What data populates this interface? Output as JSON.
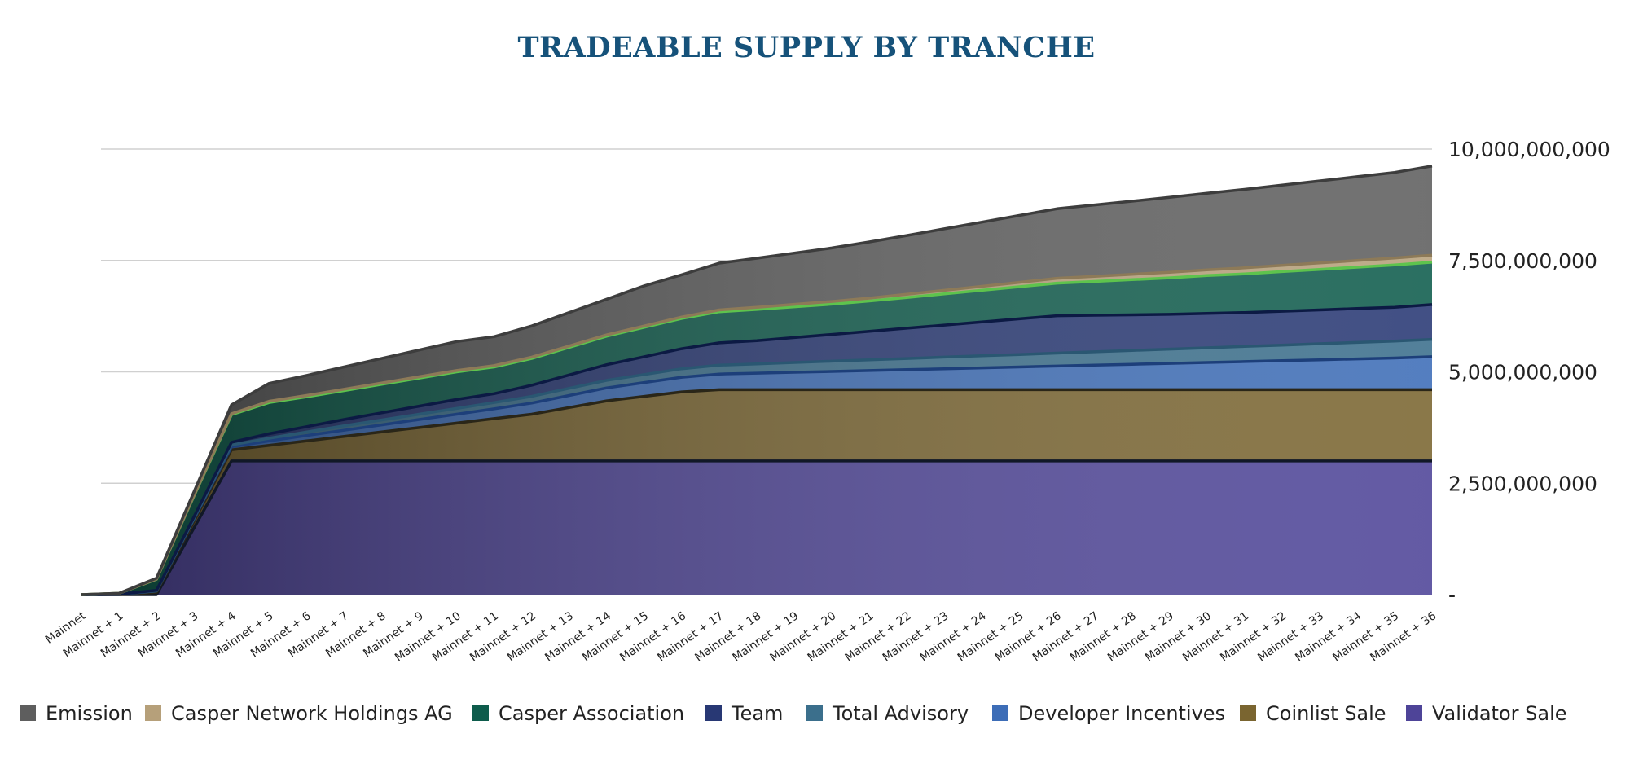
{
  "chart_data": {
    "type": "area",
    "stacked": true,
    "title": "TRADEABLE SUPPLY BY TRANCHE",
    "xlabel": "",
    "ylabel": "",
    "ylim": [
      0,
      10000000000
    ],
    "y_axis_position": "right",
    "yticks": [
      {
        "value": 0,
        "label": "-"
      },
      {
        "value": 2500000000,
        "label": "2,500,000,000"
      },
      {
        "value": 5000000000,
        "label": "5,000,000,000"
      },
      {
        "value": 7500000000,
        "label": "7,500,000,000"
      },
      {
        "value": 10000000000,
        "label": "10,000,000,000"
      }
    ],
    "grid": true,
    "legend_position": "bottom",
    "categories": [
      "Mainnet",
      "Mainnet + 1",
      "Mainnet + 2",
      "Mainnet + 3",
      "Mainnet + 4",
      "Mainnet + 5",
      "Mainnet + 6",
      "Mainnet + 7",
      "Mainnet + 8",
      "Mainnet + 9",
      "Mainnet + 10",
      "Mainnet + 11",
      "Mainnet + 12",
      "Mainnet + 13",
      "Mainnet + 14",
      "Mainnet + 15",
      "Mainnet + 16",
      "Mainnet + 17",
      "Mainnet + 18",
      "Mainnet + 19",
      "Mainnet + 20",
      "Mainnet + 21",
      "Mainnet + 22",
      "Mainnet + 23",
      "Mainnet + 24",
      "Mainnet + 25",
      "Mainnet + 26",
      "Mainnet + 27",
      "Mainnet + 28",
      "Mainnet + 29",
      "Mainnet + 30",
      "Mainnet + 31",
      "Mainnet + 32",
      "Mainnet + 33",
      "Mainnet + 34",
      "Mainnet + 35",
      "Mainnet + 36"
    ],
    "series": [
      {
        "name": "Validator Sale",
        "color": "#4e4498",
        "values": [
          0,
          0,
          0,
          1500000000,
          3000000000,
          3000000000,
          3000000000,
          3000000000,
          3000000000,
          3000000000,
          3000000000,
          3000000000,
          3000000000,
          3000000000,
          3000000000,
          3000000000,
          3000000000,
          3000000000,
          3000000000,
          3000000000,
          3000000000,
          3000000000,
          3000000000,
          3000000000,
          3000000000,
          3000000000,
          3000000000,
          3000000000,
          3000000000,
          3000000000,
          3000000000,
          3000000000,
          3000000000,
          3000000000,
          3000000000,
          3000000000,
          3000000000
        ]
      },
      {
        "name": "Coinlist Sale",
        "color": "#7a6530",
        "values": [
          0,
          0,
          50000000,
          150000000,
          250000000,
          350000000,
          450000000,
          550000000,
          650000000,
          750000000,
          850000000,
          950000000,
          1050000000,
          1200000000,
          1350000000,
          1450000000,
          1550000000,
          1600000000,
          1600000000,
          1600000000,
          1600000000,
          1600000000,
          1600000000,
          1600000000,
          1600000000,
          1600000000,
          1600000000,
          1600000000,
          1600000000,
          1600000000,
          1600000000,
          1600000000,
          1600000000,
          1600000000,
          1600000000,
          1600000000,
          1600000000
        ]
      },
      {
        "name": "Developer Incentives",
        "color": "#3d6db7",
        "values": [
          0,
          10000000,
          30000000,
          50000000,
          70000000,
          100000000,
          120000000,
          140000000,
          160000000,
          180000000,
          200000000,
          220000000,
          250000000,
          270000000,
          290000000,
          310000000,
          330000000,
          350000000,
          370000000,
          390000000,
          410000000,
          430000000,
          450000000,
          470000000,
          490000000,
          510000000,
          530000000,
          550000000,
          570000000,
          590000000,
          610000000,
          630000000,
          650000000,
          670000000,
          690000000,
          710000000,
          740000000
        ]
      },
      {
        "name": "Total Advisory",
        "color": "#3b6f8c",
        "values": [
          0,
          0,
          5000000,
          20000000,
          40000000,
          60000000,
          80000000,
          100000000,
          110000000,
          120000000,
          130000000,
          140000000,
          150000000,
          160000000,
          170000000,
          180000000,
          190000000,
          200000000,
          210000000,
          220000000,
          230000000,
          240000000,
          250000000,
          260000000,
          270000000,
          280000000,
          290000000,
          300000000,
          310000000,
          320000000,
          330000000,
          340000000,
          350000000,
          360000000,
          370000000,
          380000000,
          390000000
        ]
      },
      {
        "name": "Team",
        "color": "#283874",
        "values": [
          0,
          0,
          10000000,
          30000000,
          60000000,
          100000000,
          120000000,
          140000000,
          160000000,
          180000000,
          200000000,
          200000000,
          250000000,
          300000000,
          350000000,
          400000000,
          450000000,
          500000000,
          520000000,
          560000000,
          600000000,
          640000000,
          680000000,
          720000000,
          760000000,
          800000000,
          840000000,
          820000000,
          800000000,
          780000000,
          770000000,
          760000000,
          760000000,
          760000000,
          760000000,
          760000000,
          780000000
        ]
      },
      {
        "name": "Casper Association",
        "color": "#0e5c4c",
        "values": [
          0,
          20000000,
          250000000,
          470000000,
          620000000,
          700000000,
          670000000,
          650000000,
          640000000,
          630000000,
          620000000,
          600000000,
          600000000,
          620000000,
          640000000,
          660000000,
          680000000,
          700000000,
          700000000,
          690000000,
          680000000,
          680000000,
          690000000,
          700000000,
          710000000,
          720000000,
          730000000,
          760000000,
          790000000,
          820000000,
          850000000,
          870000000,
          890000000,
          910000000,
          930000000,
          950000000,
          950000000
        ]
      },
      {
        "name": "Casper Network Holdings AG",
        "color": "#b6a07a",
        "values": [
          0,
          0,
          5000000,
          10000000,
          20000000,
          30000000,
          30000000,
          30000000,
          30000000,
          30000000,
          30000000,
          30000000,
          30000000,
          30000000,
          30000000,
          30000000,
          30000000,
          40000000,
          50000000,
          55000000,
          60000000,
          65000000,
          70000000,
          80000000,
          90000000,
          100000000,
          110000000,
          115000000,
          120000000,
          125000000,
          130000000,
          135000000,
          140000000,
          145000000,
          150000000,
          155000000,
          160000000
        ]
      },
      {
        "name": "Emission",
        "color": "#5e5e5e",
        "values": [
          0,
          0,
          20000000,
          80000000,
          200000000,
          400000000,
          450000000,
          500000000,
          550000000,
          600000000,
          650000000,
          650000000,
          700000000,
          750000000,
          800000000,
          900000000,
          950000000,
          1050000000,
          1100000000,
          1150000000,
          1200000000,
          1260000000,
          1320000000,
          1380000000,
          1440000000,
          1500000000,
          1560000000,
          1600000000,
          1640000000,
          1680000000,
          1720000000,
          1760000000,
          1800000000,
          1840000000,
          1880000000,
          1920000000,
          2000000000
        ]
      }
    ]
  }
}
